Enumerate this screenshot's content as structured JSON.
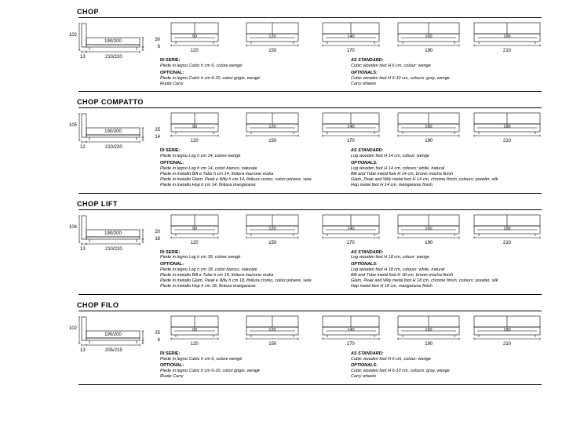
{
  "sections": [
    {
      "title": "CHOP",
      "side": {
        "h_total": "102",
        "h_back": "30",
        "h_foot": "6",
        "w_foot": "13",
        "w_total": "210/220",
        "inner": "190/200"
      },
      "fronts": [
        {
          "inner": "90",
          "w": "120"
        },
        {
          "inner": "120",
          "w": "150"
        },
        {
          "inner": "140",
          "w": "170"
        },
        {
          "inner": "160",
          "w": "190"
        },
        {
          "inner": "180",
          "w": "210"
        }
      ],
      "desc_it": {
        "std_h": "DI SERIE:",
        "std": [
          "Piede in legno Cubic h cm 6, colore wengé"
        ],
        "opt_h": "OPTIONAL:",
        "opt": [
          "Piede in legno Cubic h cm 6-10, colori grigio, wengé",
          "Ruote Carry"
        ]
      },
      "desc_en": {
        "std_h": "AS STANDARD:",
        "std": [
          "Cubic wooden foot H 6 cm, colour: wenge"
        ],
        "opt_h": "OPTIONALS:",
        "opt": [
          "Cubic wooden foot H 6-10 cm, colours: gray, wenge",
          "Carry wheels"
        ]
      }
    },
    {
      "title": "CHOP COMPATTO",
      "side": {
        "h_total": "105",
        "h_back": "25",
        "h_foot": "14",
        "w_foot": "12",
        "w_total": "210/220",
        "inner": "190/200"
      },
      "fronts": [
        {
          "inner": "90",
          "w": "120"
        },
        {
          "inner": "120",
          "w": "150"
        },
        {
          "inner": "140",
          "w": "170"
        },
        {
          "inner": "160",
          "w": "190"
        },
        {
          "inner": "180",
          "w": "210"
        }
      ],
      "desc_it": {
        "std_h": "DI SERIE:",
        "std": [
          "Piede in legno Log h cm 14, colore wengé"
        ],
        "opt_h": "OPTIONAL:",
        "opt": [
          "Piede in legno Log h cm 14, colori bianco, naturale",
          "Piede in metallo Bilt e Tube h cm 14, finitura marrone moka",
          "Piede in metallo Glam, Peak e Wily h cm 14, finitura cromo, colori polvere, seta",
          "Piede in metallo Hop h cm 14, finitura manganese"
        ]
      },
      "desc_en": {
        "std_h": "AS STANDARD:",
        "std": [
          "Log wooden foot H 14 cm, colour: wenge"
        ],
        "opt_h": "OPTIONALS:",
        "opt": [
          "Log wooden foot H 14 cm, colours: white, natural",
          "Bilt and Tube metal foot H 14 cm, brown mocha finish",
          "Glam, Peak and Wily metal foot H 14 cm, chrome finish, colours: powder, silk",
          "Hop metal foot H 14 cm, manganese finish"
        ]
      }
    },
    {
      "title": "CHOP LIFT",
      "side": {
        "h_total": "104",
        "h_back": "20",
        "h_foot": "18",
        "w_foot": "13",
        "w_total": "210/220",
        "inner": "190/200"
      },
      "fronts": [
        {
          "inner": "90",
          "w": "120"
        },
        {
          "inner": "120",
          "w": "150"
        },
        {
          "inner": "140",
          "w": "170"
        },
        {
          "inner": "160",
          "w": "190"
        },
        {
          "inner": "180",
          "w": "210"
        }
      ],
      "desc_it": {
        "std_h": "DI SERIE:",
        "std": [
          "Piede in legno Log h cm 18, colore wengé"
        ],
        "opt_h": "OPTIONAL:",
        "opt": [
          "Piede in legno Log h cm 18, colori bianco, naturale",
          "Piede in metallo Bilt e Tube h cm 18, finitura marrone moka",
          "Piede in metallo Glam, Peak e Wily h cm 18, finitura cromo, colori polvere, seta",
          "Piede in metallo Hop h cm 18, finitura manganese"
        ]
      },
      "desc_en": {
        "std_h": "AS STANDARD:",
        "std": [
          "Log wooden foot H 18 cm, colour: wenge"
        ],
        "opt_h": "OPTIONALS:",
        "opt": [
          "Log wooden foot H 18 cm, colours: white, natural",
          "Bilt and Tube metal foot H 18 cm, brown mocha finish",
          "Glam, Peak and Wily metal foot H 18 cm, chrome finish, colours: powder, silk",
          "Hop metal foot H 18 cm, manganese finish"
        ]
      }
    },
    {
      "title": "CHOP FILO",
      "side": {
        "h_total": "102",
        "h_back": "25",
        "h_foot": "6",
        "w_foot": "13",
        "w_total": "205/215",
        "inner": "190/200"
      },
      "fronts": [
        {
          "inner": "90",
          "w": "120"
        },
        {
          "inner": "120",
          "w": "150"
        },
        {
          "inner": "140",
          "w": "170"
        },
        {
          "inner": "160",
          "w": "190"
        },
        {
          "inner": "180",
          "w": "210"
        }
      ],
      "desc_it": {
        "std_h": "DI SERIE:",
        "std": [
          "Piede in legno Cubic h cm 6, colore wengé"
        ],
        "opt_h": "OPTIONAL:",
        "opt": [
          "Piede in legno Cubic h cm 6-10, colori grigio, wengé",
          "Ruote Carry"
        ]
      },
      "desc_en": {
        "std_h": "AS STANDARD:",
        "std": [
          "Cubic wooden foot H 6 cm, colour: wenge"
        ],
        "opt_h": "OPTIONALS:",
        "opt": [
          "Cubic wooden foot H 6-10 cm, colours: gray, wenge",
          "Carry wheels"
        ]
      }
    }
  ],
  "style": {
    "stroke": "#000000",
    "stroke_w": 0.6,
    "bg": "#ffffff"
  }
}
